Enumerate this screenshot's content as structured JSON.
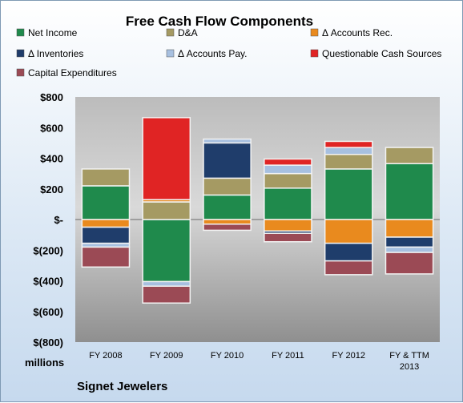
{
  "chart_data": {
    "type": "bar",
    "stacked": true,
    "title": "Free Cash Flow Components",
    "unit_label": "millions",
    "footer": "Signet Jewelers",
    "categories": [
      "FY 2008",
      "FY 2009",
      "FY 2010",
      "FY 2011",
      "FY 2012",
      "FY & TTM 2013"
    ],
    "yticks": [
      "$800",
      "$600",
      "$400",
      "$200",
      "$-",
      "$(200)",
      "$(400)",
      "$(600)",
      "$(800)"
    ],
    "ylim": [
      -800,
      800
    ],
    "grid": false,
    "legend_position": "top",
    "series": [
      {
        "name": "Net Income",
        "color": "#1f8a4c",
        "values": [
          220,
          -405,
          160,
          205,
          330,
          365
        ]
      },
      {
        "name": "D&A",
        "color": "#a59a63",
        "values": [
          110,
          115,
          110,
          95,
          95,
          105
        ]
      },
      {
        "name": "Δ Accounts Rec.",
        "color": "#e98a1e",
        "values": [
          -50,
          15,
          -30,
          -75,
          -155,
          -115
        ]
      },
      {
        "name": "Δ Inventories",
        "color": "#1f3d6b",
        "values": [
          -105,
          0,
          230,
          -15,
          -115,
          -65
        ]
      },
      {
        "name": "Δ Accounts Pay.",
        "color": "#a7c0e0",
        "values": [
          -25,
          -30,
          25,
          55,
          45,
          -35
        ]
      },
      {
        "name": "Questionable Cash Sources",
        "color": "#e02424",
        "values": [
          0,
          535,
          0,
          40,
          40,
          0
        ]
      },
      {
        "name": "Capital Expenditures",
        "color": "#9b4a55",
        "values": [
          -130,
          -110,
          -40,
          -55,
          -90,
          -140
        ]
      }
    ]
  }
}
